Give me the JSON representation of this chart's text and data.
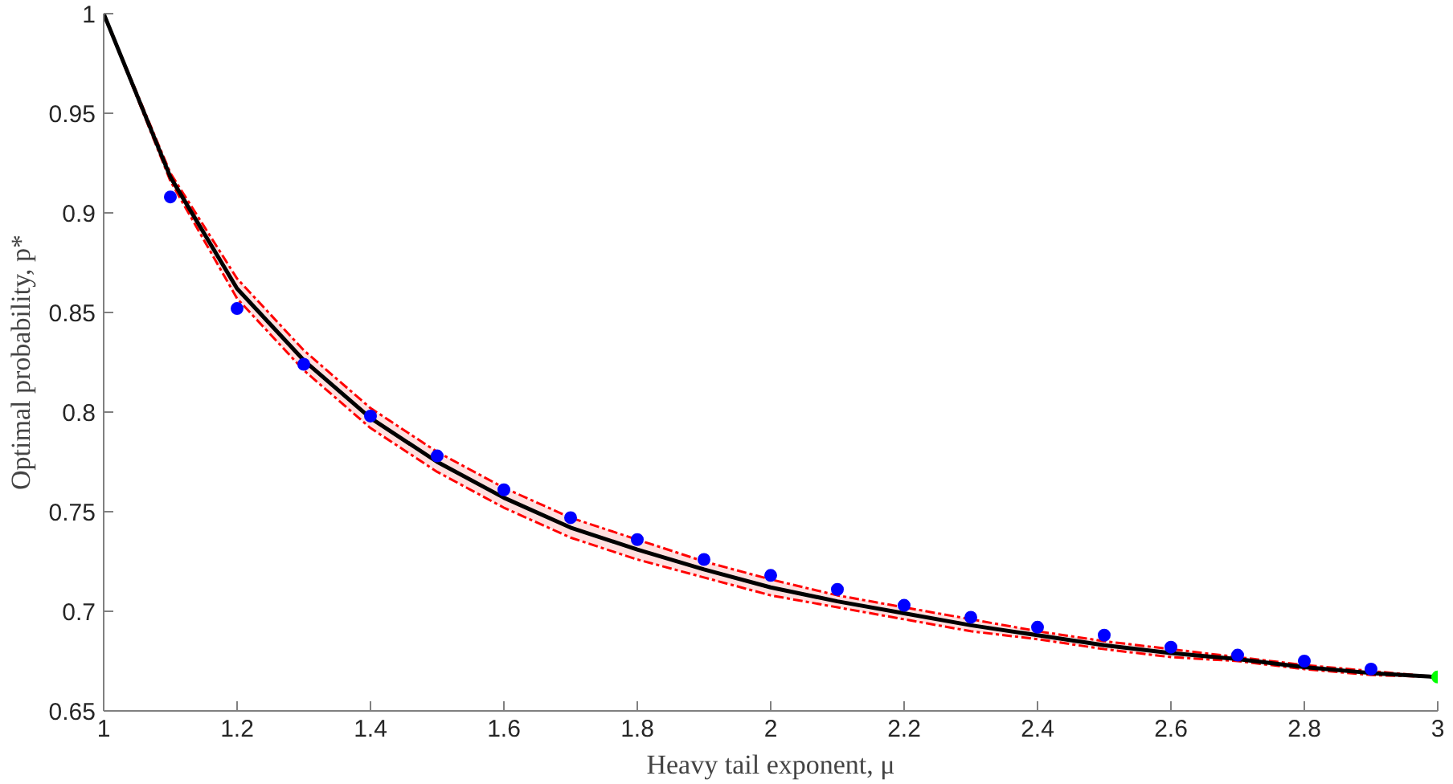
{
  "chart_data": {
    "type": "line",
    "xlabel": "Heavy tail exponent, μ",
    "ylabel": "Optimal probability, p*",
    "x": [
      1.0,
      1.1,
      1.2,
      1.3,
      1.4,
      1.5,
      1.6,
      1.7,
      1.8,
      1.9,
      2.0,
      2.1,
      2.2,
      2.3,
      2.4,
      2.5,
      2.6,
      2.7,
      2.8,
      2.9,
      3.0
    ],
    "xlim": [
      1,
      3
    ],
    "ylim": [
      0.65,
      1
    ],
    "xticks": [
      1,
      1.2,
      1.4,
      1.6,
      1.8,
      2,
      2.2,
      2.4,
      2.6,
      2.8,
      3
    ],
    "yticks": [
      0.65,
      0.7,
      0.75,
      0.8,
      0.85,
      0.9,
      0.95,
      1
    ],
    "grid": false,
    "series": [
      {
        "color": "#000000",
        "values": [
          1.0,
          0.918,
          0.862,
          0.826,
          0.797,
          0.775,
          0.757,
          0.742,
          0.731,
          0.721,
          0.712,
          0.705,
          0.699,
          0.693,
          0.688,
          0.683,
          0.679,
          0.676,
          0.672,
          0.669,
          0.667
        ],
        "upper": [
          1.0,
          0.92,
          0.867,
          0.831,
          0.802,
          0.78,
          0.762,
          0.747,
          0.736,
          0.725,
          0.716,
          0.708,
          0.702,
          0.696,
          0.69,
          0.685,
          0.681,
          0.677,
          0.673,
          0.67,
          0.667
        ],
        "lower": [
          1.0,
          0.916,
          0.857,
          0.821,
          0.792,
          0.77,
          0.752,
          0.737,
          0.726,
          0.717,
          0.708,
          0.702,
          0.696,
          0.69,
          0.686,
          0.681,
          0.677,
          0.675,
          0.671,
          0.668,
          0.667
        ]
      },
      {
        "type": "scatter",
        "color": "#0000ff",
        "marker": "circle",
        "x": [
          1.1,
          1.2,
          1.3,
          1.4,
          1.5,
          1.6,
          1.7,
          1.8,
          1.9,
          2.0,
          2.1,
          2.2,
          2.3,
          2.4,
          2.5,
          2.6,
          2.7,
          2.8,
          2.9
        ],
        "values": [
          0.908,
          0.852,
          0.824,
          0.798,
          0.778,
          0.761,
          0.747,
          0.736,
          0.726,
          0.718,
          0.711,
          0.703,
          0.697,
          0.692,
          0.688,
          0.682,
          0.678,
          0.675,
          0.671
        ]
      },
      {
        "type": "scatter",
        "color": "#00ff00",
        "marker": "circle",
        "x": [
          3.0
        ],
        "values": [
          0.667
        ]
      }
    ]
  }
}
